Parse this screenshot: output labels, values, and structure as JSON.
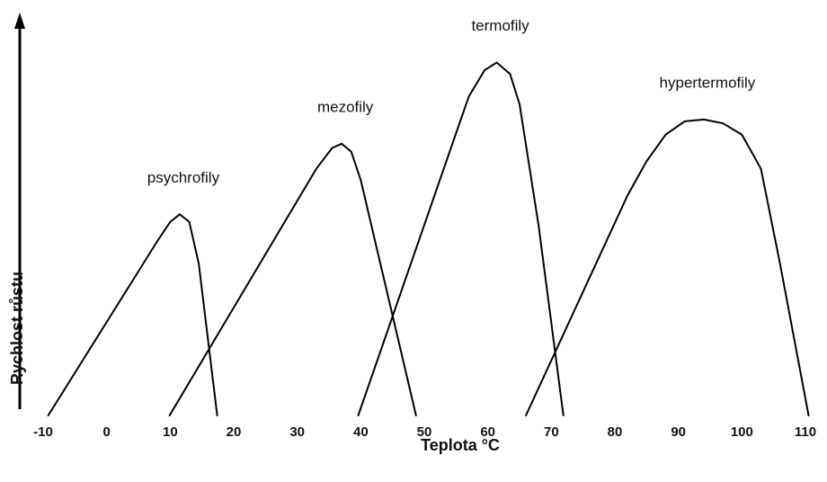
{
  "chart_data": {
    "type": "line",
    "x_label": "Teplota °C",
    "y_label": "Rychlost růstu",
    "xlim": [
      -10,
      110
    ],
    "xticks": [
      -10,
      0,
      10,
      20,
      30,
      40,
      50,
      60,
      70,
      80,
      90,
      100,
      110
    ],
    "ylim": [
      0,
      100
    ],
    "color": "#000000",
    "series": [
      {
        "name": "psychrofily",
        "x": [
          -9.2,
          8,
          10,
          11.5,
          13,
          14.5,
          17.4
        ],
        "values": [
          0,
          46,
          51,
          53,
          51,
          40,
          0
        ]
      },
      {
        "name": "mezofily",
        "x": [
          9.9,
          33,
          35.5,
          37,
          38.5,
          40,
          48.7
        ],
        "values": [
          0,
          65,
          70.5,
          71.6,
          69.5,
          62,
          0
        ]
      },
      {
        "name": "termofily",
        "x": [
          39.6,
          57,
          59.5,
          61.4,
          63.5,
          65,
          68,
          71.9
        ],
        "values": [
          0,
          84,
          91,
          93,
          90,
          82,
          50,
          0
        ]
      },
      {
        "name": "hypertermofily",
        "x": [
          66,
          82,
          85,
          88,
          91,
          94,
          97,
          100,
          103,
          106,
          110.5
        ],
        "values": [
          0,
          58,
          67,
          74,
          77.5,
          78,
          77,
          74,
          65,
          40,
          0
        ]
      }
    ]
  }
}
